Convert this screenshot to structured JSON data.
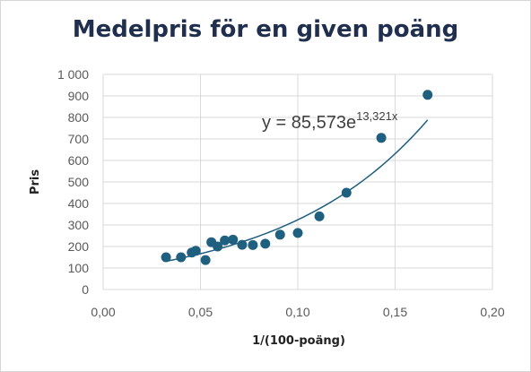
{
  "chart_data": {
    "type": "scatter",
    "title": "Medelpris för en given poäng",
    "xlabel": "1/(100-poäng)",
    "ylabel": "Pris",
    "xlim": [
      0,
      0.2
    ],
    "ylim": [
      0,
      1000
    ],
    "x_ticks": [
      "0,00",
      "0,05",
      "0,10",
      "0,15",
      "0,20"
    ],
    "y_ticks": [
      "0",
      "100",
      "200",
      "300",
      "400",
      "500",
      "600",
      "700",
      "800",
      "900",
      "1 000"
    ],
    "grid": true,
    "marker_color": "#1f5f7f",
    "trendline_color": "#1f5f7f",
    "series": [
      {
        "points": [
          {
            "x": 0.0323,
            "y": 150
          },
          {
            "x": 0.04,
            "y": 150
          },
          {
            "x": 0.0455,
            "y": 172
          },
          {
            "x": 0.0476,
            "y": 180
          },
          {
            "x": 0.0526,
            "y": 137
          },
          {
            "x": 0.0556,
            "y": 220
          },
          {
            "x": 0.0588,
            "y": 200
          },
          {
            "x": 0.0625,
            "y": 228
          },
          {
            "x": 0.0667,
            "y": 232
          },
          {
            "x": 0.0714,
            "y": 208
          },
          {
            "x": 0.0769,
            "y": 207
          },
          {
            "x": 0.0833,
            "y": 213
          },
          {
            "x": 0.0909,
            "y": 255
          },
          {
            "x": 0.1,
            "y": 263
          },
          {
            "x": 0.1111,
            "y": 340
          },
          {
            "x": 0.125,
            "y": 450
          },
          {
            "x": 0.1429,
            "y": 705
          },
          {
            "x": 0.1667,
            "y": 905
          }
        ]
      }
    ],
    "trendline": {
      "type": "exponential",
      "a": 85.573,
      "b": 13.321,
      "x_range": [
        0.0323,
        0.1667
      ],
      "label_base": "y = 85,573e",
      "label_exponent": "13,321x"
    }
  }
}
